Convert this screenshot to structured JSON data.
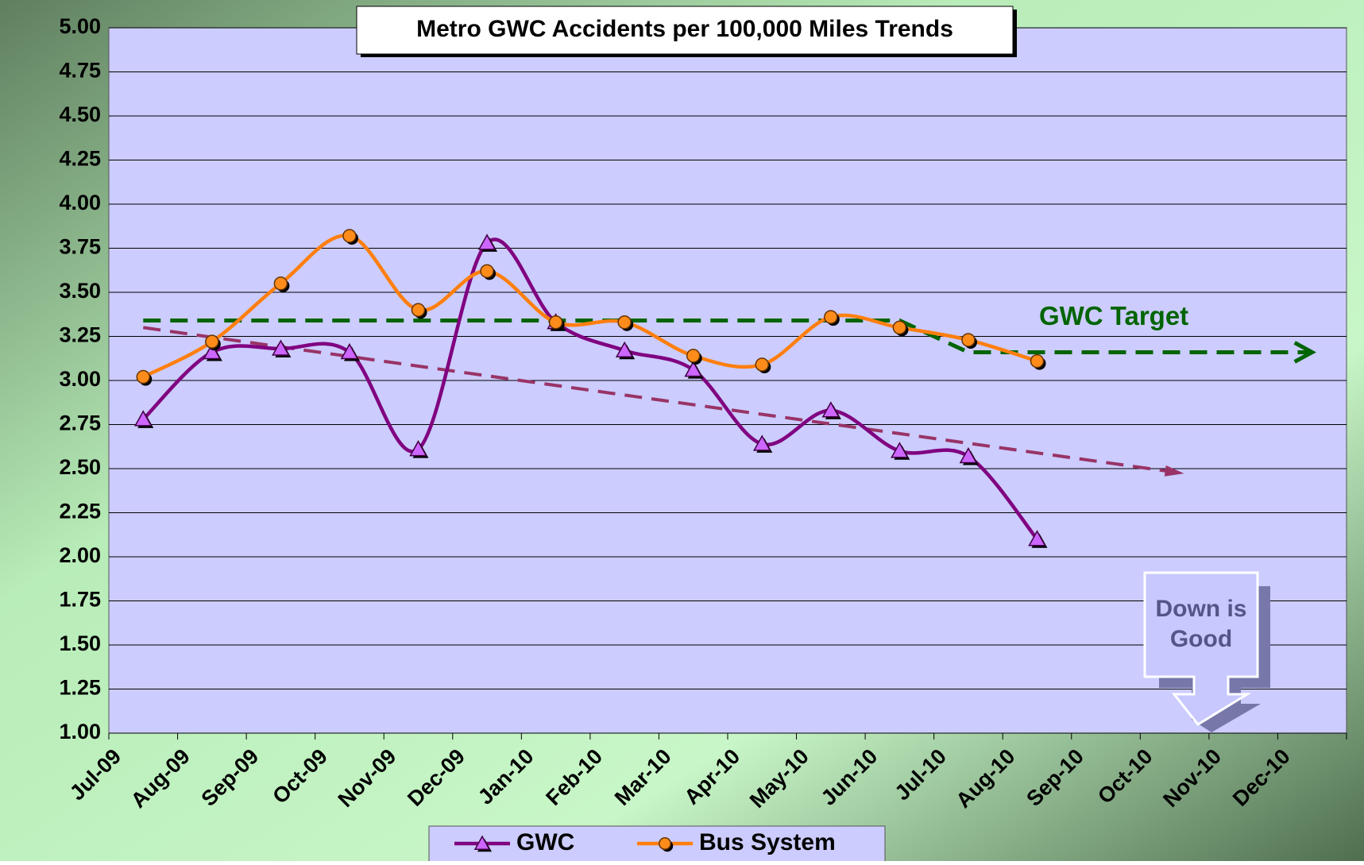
{
  "chart_data": {
    "type": "line",
    "title": "Metro GWC Accidents per 100,000 Miles Trends",
    "categories": [
      "Jul-09",
      "Aug-09",
      "Sep-09",
      "Oct-09",
      "Nov-09",
      "Dec-09",
      "Jan-10",
      "Feb-10",
      "Mar-10",
      "Apr-10",
      "May-10",
      "Jun-10",
      "Jul-10",
      "Aug-10",
      "Sep-10",
      "Oct-10",
      "Nov-10",
      "Dec-10"
    ],
    "series": [
      {
        "name": "GWC",
        "color": "#800080",
        "marker_color": "#cc66ff",
        "marker": "triangle",
        "values": [
          2.78,
          3.16,
          3.18,
          3.16,
          2.61,
          3.78,
          3.33,
          3.17,
          3.06,
          2.64,
          2.83,
          2.6,
          2.57,
          2.1,
          null,
          null,
          null,
          null
        ]
      },
      {
        "name": "Bus System",
        "color": "#ff7f0e",
        "marker_color": "#ff8c1a",
        "marker": "circle",
        "values": [
          3.02,
          3.22,
          3.55,
          3.82,
          3.4,
          3.62,
          3.33,
          3.33,
          3.14,
          3.09,
          3.36,
          3.3,
          3.23,
          3.11,
          null,
          null,
          null,
          null
        ]
      }
    ],
    "target": {
      "label": "GWC Target",
      "color": "#006400",
      "values": [
        3.34,
        3.34,
        3.34,
        3.34,
        3.34,
        3.34,
        3.34,
        3.34,
        3.34,
        3.34,
        3.34,
        3.34,
        3.16,
        3.16,
        3.16,
        3.16,
        3.16,
        3.16
      ]
    },
    "trend": {
      "color": "#993366",
      "x": [
        "Jul-09",
        "Oct-10"
      ],
      "values": [
        3.3,
        2.48
      ]
    },
    "annotation": "Down is Good",
    "ylim": [
      1,
      5
    ],
    "yticks": [
      {
        "value": 1,
        "label": "1.00"
      },
      {
        "value": 1.25,
        "label": "1.25"
      },
      {
        "value": 1.5,
        "label": "1.50"
      },
      {
        "value": 1.75,
        "label": "1.75"
      },
      {
        "value": 2,
        "label": "2.00"
      },
      {
        "value": 2.25,
        "label": "2.25"
      },
      {
        "value": 2.5,
        "label": "2.50"
      },
      {
        "value": 2.75,
        "label": "2.75"
      },
      {
        "value": 3,
        "label": "3.00"
      },
      {
        "value": 3.25,
        "label": "3.25"
      },
      {
        "value": 3.5,
        "label": "3.50"
      },
      {
        "value": 3.75,
        "label": "3.75"
      },
      {
        "value": 4,
        "label": "4.00"
      },
      {
        "value": 4.25,
        "label": "4.25"
      },
      {
        "value": 4.5,
        "label": "4.50"
      },
      {
        "value": 4.75,
        "label": "4.75"
      },
      {
        "value": 5,
        "label": "5.00"
      }
    ],
    "grid": true
  }
}
